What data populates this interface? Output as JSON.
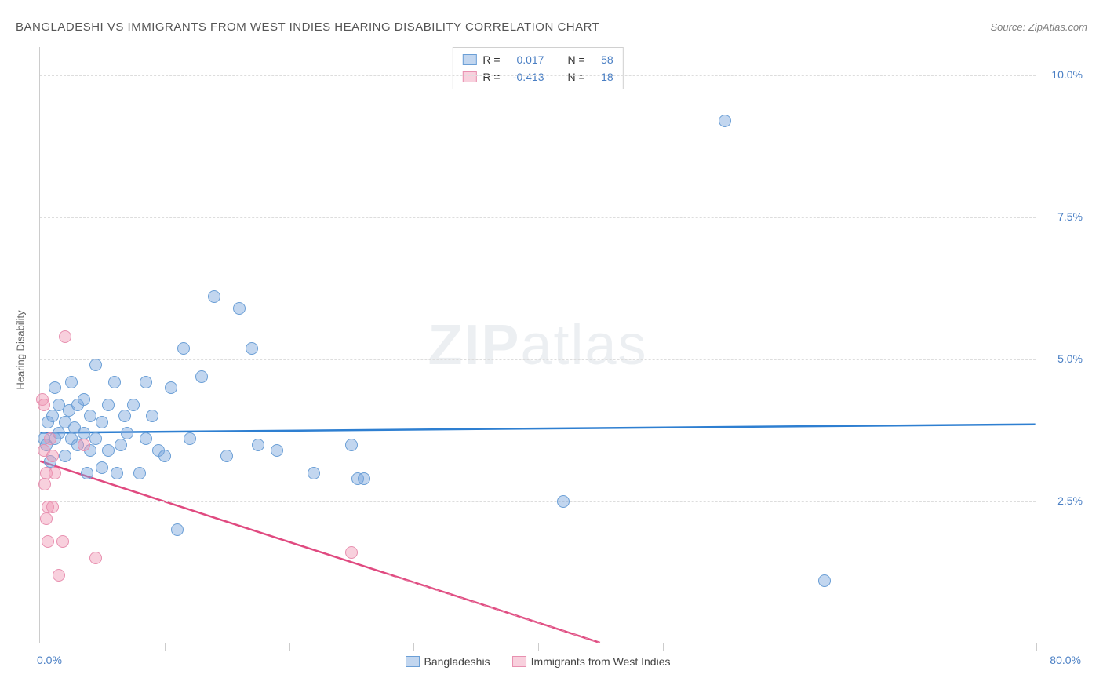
{
  "title": "BANGLADESHI VS IMMIGRANTS FROM WEST INDIES HEARING DISABILITY CORRELATION CHART",
  "source": "Source: ZipAtlas.com",
  "watermark": {
    "zip": "ZIP",
    "atlas": "atlas"
  },
  "y_axis_title": "Hearing Disability",
  "chart": {
    "type": "scatter",
    "xlim": [
      0,
      80
    ],
    "ylim": [
      0,
      10.5
    ],
    "x_ticks_pct": [
      0,
      10,
      20,
      30,
      40,
      50,
      60,
      70,
      80
    ],
    "x_tick_labels": {
      "0": "0.0%",
      "80": "80.0%"
    },
    "y_ticks": [
      2.5,
      5.0,
      7.5,
      10.0
    ],
    "y_tick_labels": [
      "2.5%",
      "5.0%",
      "7.5%",
      "10.0%"
    ],
    "background_color": "#ffffff",
    "grid_color": "#dddddd",
    "series": [
      {
        "name": "Bangladeshis",
        "color_fill": "rgba(120,165,220,0.45)",
        "color_stroke": "#6b9fd6",
        "line_color": "#2e7fd1",
        "r_value": "0.017",
        "n_value": "58",
        "regression": {
          "x1": 0,
          "y1": 3.7,
          "x2": 80,
          "y2": 3.85
        },
        "points": [
          [
            0.3,
            3.6
          ],
          [
            0.5,
            3.5
          ],
          [
            0.6,
            3.9
          ],
          [
            0.8,
            3.2
          ],
          [
            1.0,
            4.0
          ],
          [
            1.2,
            4.5
          ],
          [
            1.2,
            3.6
          ],
          [
            1.5,
            3.7
          ],
          [
            1.5,
            4.2
          ],
          [
            2.0,
            3.3
          ],
          [
            2.0,
            3.9
          ],
          [
            2.3,
            4.1
          ],
          [
            2.5,
            4.6
          ],
          [
            2.5,
            3.6
          ],
          [
            2.8,
            3.8
          ],
          [
            3.0,
            4.2
          ],
          [
            3.0,
            3.5
          ],
          [
            3.5,
            3.7
          ],
          [
            3.5,
            4.3
          ],
          [
            3.8,
            3.0
          ],
          [
            4.0,
            3.4
          ],
          [
            4.0,
            4.0
          ],
          [
            4.5,
            3.6
          ],
          [
            4.5,
            4.9
          ],
          [
            5.0,
            3.1
          ],
          [
            5.0,
            3.9
          ],
          [
            5.5,
            4.2
          ],
          [
            5.5,
            3.4
          ],
          [
            6.0,
            4.6
          ],
          [
            6.2,
            3.0
          ],
          [
            6.5,
            3.5
          ],
          [
            6.8,
            4.0
          ],
          [
            7.0,
            3.7
          ],
          [
            7.5,
            4.2
          ],
          [
            8.0,
            3.0
          ],
          [
            8.5,
            3.6
          ],
          [
            8.5,
            4.6
          ],
          [
            9.0,
            4.0
          ],
          [
            9.5,
            3.4
          ],
          [
            10.0,
            3.3
          ],
          [
            10.5,
            4.5
          ],
          [
            11.0,
            2.0
          ],
          [
            11.5,
            5.2
          ],
          [
            12.0,
            3.6
          ],
          [
            13.0,
            4.7
          ],
          [
            14.0,
            6.1
          ],
          [
            15.0,
            3.3
          ],
          [
            16.0,
            5.9
          ],
          [
            17.0,
            5.2
          ],
          [
            17.5,
            3.5
          ],
          [
            19.0,
            3.4
          ],
          [
            22.0,
            3.0
          ],
          [
            25.0,
            3.5
          ],
          [
            25.5,
            2.9
          ],
          [
            26.0,
            2.9
          ],
          [
            42.0,
            2.5
          ],
          [
            55.0,
            9.2
          ],
          [
            63.0,
            1.1
          ]
        ]
      },
      {
        "name": "Immigrants from West Indies",
        "color_fill": "rgba(240,150,180,0.45)",
        "color_stroke": "#e890b0",
        "line_color": "#e04a80",
        "r_value": "-0.413",
        "n_value": "18",
        "regression": {
          "x1": 0,
          "y1": 3.2,
          "x2": 45,
          "y2": 0
        },
        "regression_dash_extend": {
          "x1": 28,
          "y1": 1.2,
          "x2": 45,
          "y2": 0
        },
        "points": [
          [
            0.2,
            4.3
          ],
          [
            0.3,
            4.2
          ],
          [
            0.3,
            3.4
          ],
          [
            0.4,
            2.8
          ],
          [
            0.5,
            3.0
          ],
          [
            0.5,
            2.2
          ],
          [
            0.6,
            2.4
          ],
          [
            0.6,
            1.8
          ],
          [
            0.8,
            3.6
          ],
          [
            1.0,
            3.3
          ],
          [
            1.0,
            2.4
          ],
          [
            1.2,
            3.0
          ],
          [
            1.5,
            1.2
          ],
          [
            1.8,
            1.8
          ],
          [
            2.0,
            5.4
          ],
          [
            3.5,
            3.5
          ],
          [
            4.5,
            1.5
          ],
          [
            25.0,
            1.6
          ]
        ]
      }
    ]
  },
  "legend_top": {
    "r_label": "R  =",
    "n_label": "N  ="
  },
  "axis_label_color": "#4a7fc4"
}
